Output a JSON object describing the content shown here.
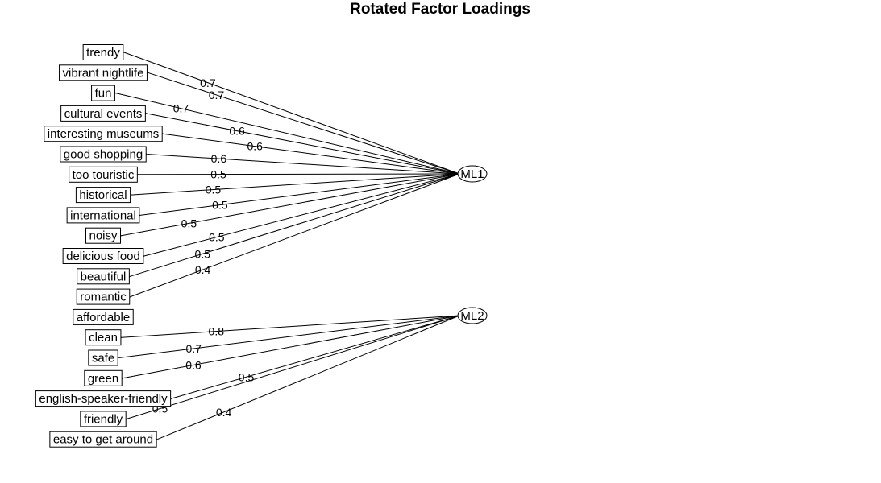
{
  "title": "Rotated Factor Loadings",
  "factors": [
    {
      "id": "ML1",
      "label": "ML1"
    },
    {
      "id": "ML2",
      "label": "ML2"
    }
  ],
  "items": [
    {
      "label": "trendy"
    },
    {
      "label": "vibrant nightlife"
    },
    {
      "label": "fun"
    },
    {
      "label": "cultural events"
    },
    {
      "label": "interesting museums"
    },
    {
      "label": "good shopping"
    },
    {
      "label": "too touristic"
    },
    {
      "label": "historical"
    },
    {
      "label": "international"
    },
    {
      "label": "noisy"
    },
    {
      "label": "delicious food"
    },
    {
      "label": "beautiful"
    },
    {
      "label": "romantic"
    },
    {
      "label": "affordable"
    },
    {
      "label": "clean"
    },
    {
      "label": "safe"
    },
    {
      "label": "green"
    },
    {
      "label": "english-speaker-friendly"
    },
    {
      "label": "friendly"
    },
    {
      "label": "easy to get around"
    }
  ],
  "loadings": [
    {
      "factor": "ML1",
      "item": "trendy",
      "value": "0.7"
    },
    {
      "factor": "ML1",
      "item": "vibrant nightlife",
      "value": "0.7"
    },
    {
      "factor": "ML1",
      "item": "fun",
      "value": "0.7"
    },
    {
      "factor": "ML1",
      "item": "cultural events",
      "value": "0.6"
    },
    {
      "factor": "ML1",
      "item": "interesting museums",
      "value": "0.6"
    },
    {
      "factor": "ML1",
      "item": "good shopping",
      "value": "0.6"
    },
    {
      "factor": "ML1",
      "item": "too touristic",
      "value": "0.5"
    },
    {
      "factor": "ML1",
      "item": "historical",
      "value": "0.5"
    },
    {
      "factor": "ML1",
      "item": "international",
      "value": "0.5"
    },
    {
      "factor": "ML1",
      "item": "noisy",
      "value": "0.5"
    },
    {
      "factor": "ML1",
      "item": "delicious food",
      "value": "0.5"
    },
    {
      "factor": "ML1",
      "item": "beautiful",
      "value": "0.5"
    },
    {
      "factor": "ML1",
      "item": "romantic",
      "value": "0.4"
    },
    {
      "factor": "ML2",
      "item": "clean",
      "value": "0.8"
    },
    {
      "factor": "ML2",
      "item": "safe",
      "value": "0.7"
    },
    {
      "factor": "ML2",
      "item": "green",
      "value": "0.6"
    },
    {
      "factor": "ML2",
      "item": "english-speaker-friendly",
      "value": "0.5"
    },
    {
      "factor": "ML2",
      "item": "friendly",
      "value": "0.5"
    },
    {
      "factor": "ML2",
      "item": "easy to get around",
      "value": "0.4"
    }
  ]
}
